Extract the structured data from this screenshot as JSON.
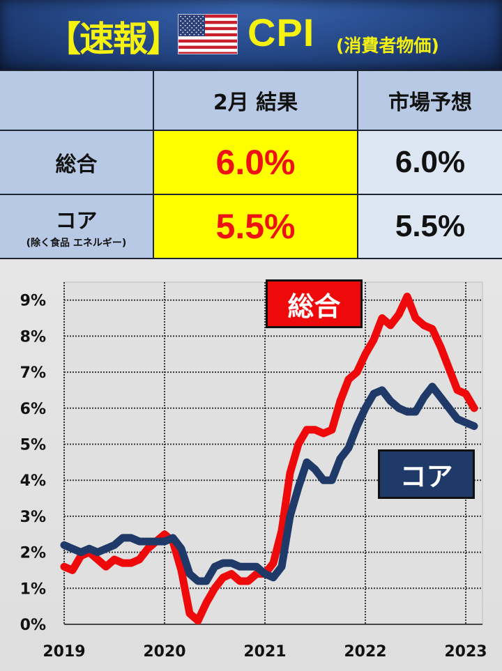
{
  "banner": {
    "title": "【速報】",
    "flag_icon": "us-flag-icon",
    "indicator": "CPI",
    "indicator_sub": "(消費者物価)"
  },
  "table": {
    "headers": [
      "",
      "2月 結果",
      "市場予想"
    ],
    "rows": [
      {
        "label": "総合",
        "sublabel": "",
        "result": "6.0%",
        "forecast": "6.0%"
      },
      {
        "label": "コア",
        "sublabel": "(除く食品 エネルギー)",
        "result": "5.5%",
        "forecast": "5.5%"
      }
    ],
    "colors": {
      "header_bg": "#b7c9e4",
      "result_bg": "#ffff00",
      "result_text": "#ee1111",
      "forecast_bg": "#dde7f4"
    }
  },
  "chart_data": {
    "type": "line",
    "title": "",
    "xlabel": "",
    "ylabel": "",
    "x_ticks": [
      "2019",
      "2020",
      "2021",
      "2022",
      "2023"
    ],
    "y_ticks": [
      "0%",
      "1%",
      "2%",
      "3%",
      "4%",
      "5%",
      "6%",
      "7%",
      "8%",
      "9%"
    ],
    "ylim": [
      0,
      9
    ],
    "grid": true,
    "x": [
      "2019-01",
      "2019-02",
      "2019-03",
      "2019-04",
      "2019-05",
      "2019-06",
      "2019-07",
      "2019-08",
      "2019-09",
      "2019-10",
      "2019-11",
      "2019-12",
      "2020-01",
      "2020-02",
      "2020-03",
      "2020-04",
      "2020-05",
      "2020-06",
      "2020-07",
      "2020-08",
      "2020-09",
      "2020-10",
      "2020-11",
      "2020-12",
      "2021-01",
      "2021-02",
      "2021-03",
      "2021-04",
      "2021-05",
      "2021-06",
      "2021-07",
      "2021-08",
      "2021-09",
      "2021-10",
      "2021-11",
      "2021-12",
      "2022-01",
      "2022-02",
      "2022-03",
      "2022-04",
      "2022-05",
      "2022-06",
      "2022-07",
      "2022-08",
      "2022-09",
      "2022-10",
      "2022-11",
      "2022-12",
      "2023-01",
      "2023-02"
    ],
    "series": [
      {
        "name": "総合",
        "color": "#ee0a0a",
        "values": [
          1.6,
          1.5,
          1.9,
          2.0,
          1.8,
          1.6,
          1.8,
          1.7,
          1.7,
          1.8,
          2.1,
          2.3,
          2.5,
          2.3,
          1.5,
          0.3,
          0.1,
          0.6,
          1.0,
          1.3,
          1.4,
          1.2,
          1.2,
          1.4,
          1.4,
          1.7,
          2.6,
          4.2,
          5.0,
          5.4,
          5.4,
          5.3,
          5.4,
          6.2,
          6.8,
          7.0,
          7.5,
          7.9,
          8.5,
          8.3,
          8.6,
          9.1,
          8.5,
          8.3,
          8.2,
          7.7,
          7.1,
          6.5,
          6.4,
          6.0
        ]
      },
      {
        "name": "コア",
        "color": "#1f3a68",
        "values": [
          2.2,
          2.1,
          2.0,
          2.1,
          2.0,
          2.1,
          2.2,
          2.4,
          2.4,
          2.3,
          2.3,
          2.3,
          2.3,
          2.4,
          2.1,
          1.4,
          1.2,
          1.2,
          1.6,
          1.7,
          1.7,
          1.6,
          1.6,
          1.6,
          1.4,
          1.3,
          1.6,
          3.0,
          3.8,
          4.5,
          4.3,
          4.0,
          4.0,
          4.6,
          4.9,
          5.5,
          6.0,
          6.4,
          6.5,
          6.2,
          6.0,
          5.9,
          5.9,
          6.3,
          6.6,
          6.3,
          6.0,
          5.7,
          5.6,
          5.5
        ]
      }
    ],
    "annotations": [
      {
        "text": "総合",
        "series": "総合"
      },
      {
        "text": "コア",
        "series": "コア"
      }
    ]
  }
}
